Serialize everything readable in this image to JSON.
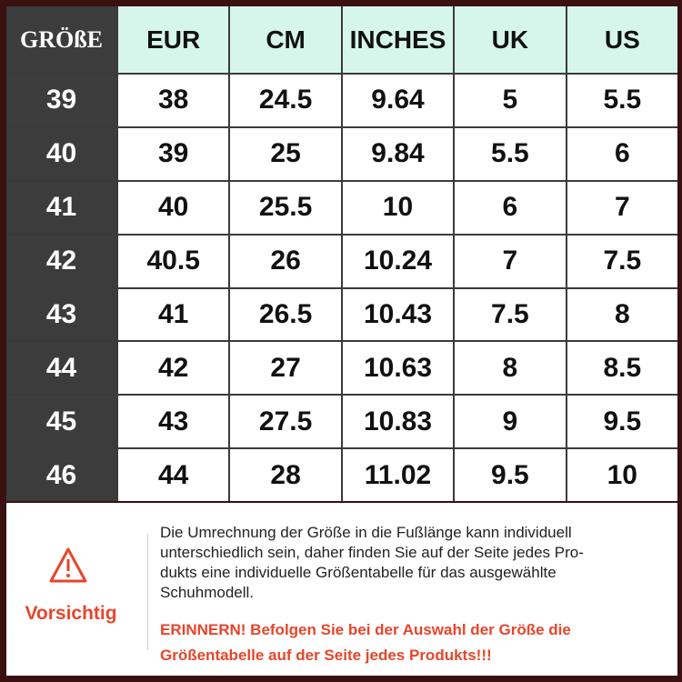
{
  "table": {
    "header": [
      "GRÖßE",
      "EUR",
      "CM",
      "INCHES",
      "UK",
      "US"
    ],
    "rows": [
      [
        "39",
        "38",
        "24.5",
        "9.64",
        "5",
        "5.5"
      ],
      [
        "40",
        "39",
        "25",
        "9.84",
        "5.5",
        "6"
      ],
      [
        "41",
        "40",
        "25.5",
        "10",
        "6",
        "7"
      ],
      [
        "42",
        "40.5",
        "26",
        "10.24",
        "7",
        "7.5"
      ],
      [
        "43",
        "41",
        "26.5",
        "10.43",
        "7.5",
        "8"
      ],
      [
        "44",
        "42",
        "27",
        "10.63",
        "8",
        "8.5"
      ],
      [
        "45",
        "43",
        "27.5",
        "10.83",
        "9",
        "9.5"
      ],
      [
        "46",
        "44",
        "28",
        "11.02",
        "9.5",
        "10"
      ]
    ]
  },
  "note": {
    "label": "Vorsichtig",
    "lines": [
      "Die Umrechnung der Größe in die Fußlänge kann individuell",
      "unterschiedlich sein, daher finden Sie auf der Seite jedes Pro-",
      "dukts eine individuelle Größentabelle für das ausgewählte",
      "Schuhmodell."
    ],
    "warning": [
      "ERINNERN! Befolgen Sie bei der Auswahl der Größe die",
      "Größentabelle auf der Seite jedes Produkts!!!"
    ]
  }
}
